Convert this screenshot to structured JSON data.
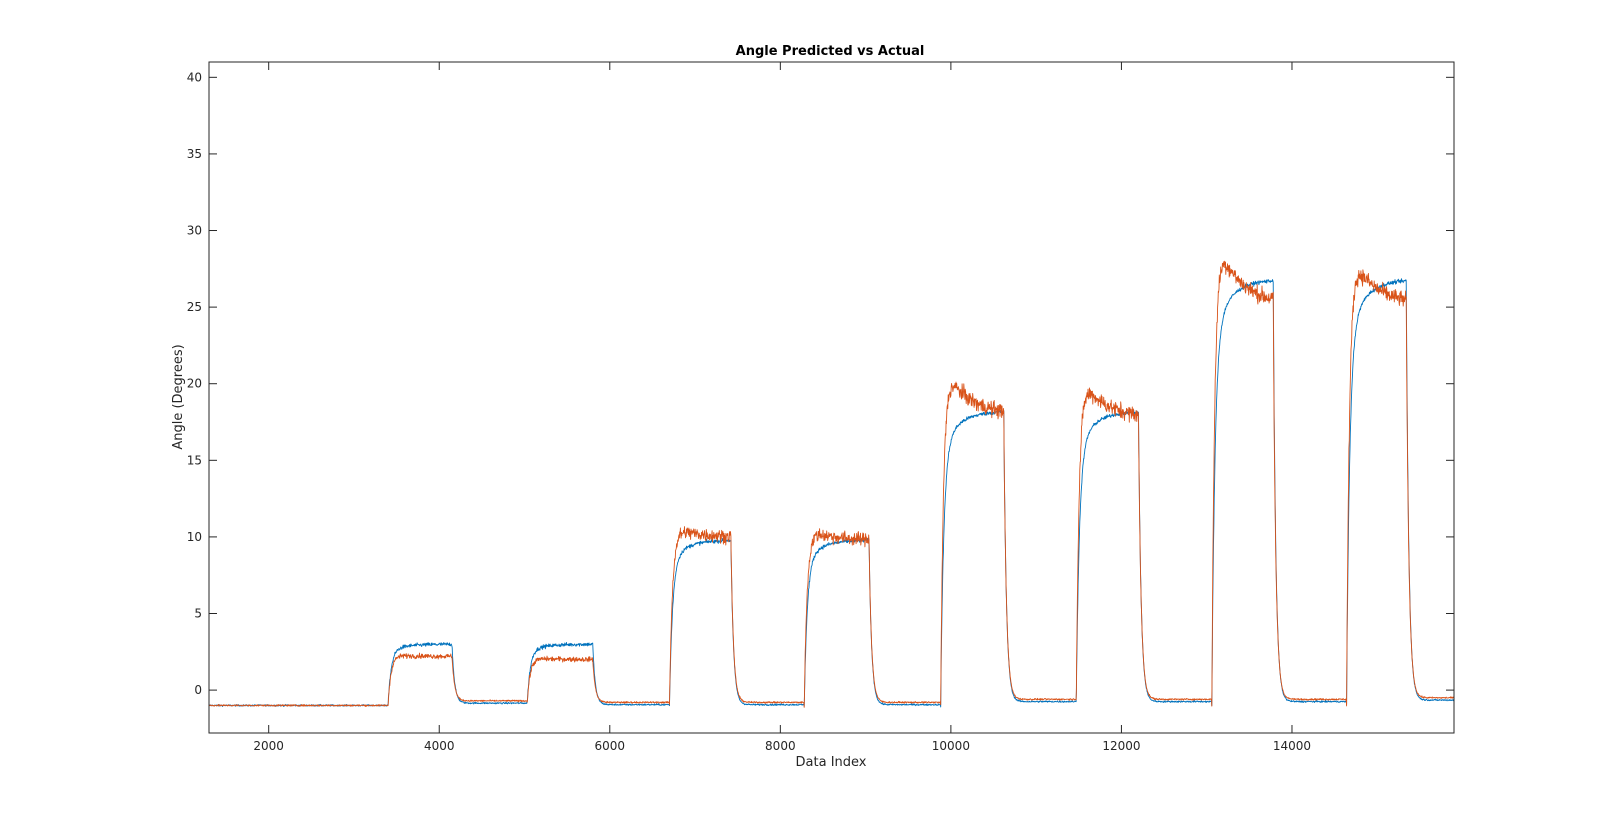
{
  "chart_data": {
    "type": "line",
    "title": "Angle Predicted vs Actual",
    "xlabel": "Data Index",
    "ylabel": "Angle (Degrees)",
    "xlim": [
      1300,
      15900
    ],
    "ylim": [
      -2.8,
      41
    ],
    "xticks": [
      2000,
      4000,
      6000,
      8000,
      10000,
      12000,
      14000
    ],
    "yticks": [
      0,
      5,
      10,
      15,
      20,
      25,
      30,
      35,
      40
    ],
    "grid": false,
    "legend": "none",
    "baseline": -1.0,
    "noise": {
      "series_1_steady": 0.12,
      "series_2_steady": 0.5
    },
    "segments": [
      {
        "start": 3400,
        "end": 4150,
        "series_1_level": 3.0,
        "series_2_peak": 2.3,
        "series_2_level": 2.2,
        "after": -0.7
      },
      {
        "start": 5030,
        "end": 5800,
        "series_1_level": 3.0,
        "series_2_peak": 2.1,
        "series_2_level": 2.0,
        "after": -0.8
      },
      {
        "start": 6700,
        "end": 7420,
        "series_1_level": 9.8,
        "series_2_peak": 10.7,
        "series_2_level": 10.0,
        "after": -0.8
      },
      {
        "start": 8280,
        "end": 9040,
        "series_1_level": 9.8,
        "series_2_peak": 10.6,
        "series_2_level": 9.8,
        "after": -0.8
      },
      {
        "start": 9880,
        "end": 10620,
        "series_1_level": 18.2,
        "series_2_peak": 21.7,
        "series_2_level": 18.0,
        "after": -0.6
      },
      {
        "start": 11470,
        "end": 12200,
        "series_1_level": 18.2,
        "series_2_peak": 21.0,
        "series_2_level": 17.8,
        "after": -0.6
      },
      {
        "start": 13060,
        "end": 13780,
        "series_1_level": 26.8,
        "series_2_peak": 30.5,
        "series_2_level": 25.2,
        "after": -0.6
      },
      {
        "start": 14640,
        "end": 15340,
        "series_1_level": 26.8,
        "series_2_peak": 29.2,
        "series_2_level": 25.2,
        "after": -0.5
      }
    ],
    "series": [
      {
        "color": "#0072BD"
      },
      {
        "color": "#D95319"
      }
    ]
  }
}
